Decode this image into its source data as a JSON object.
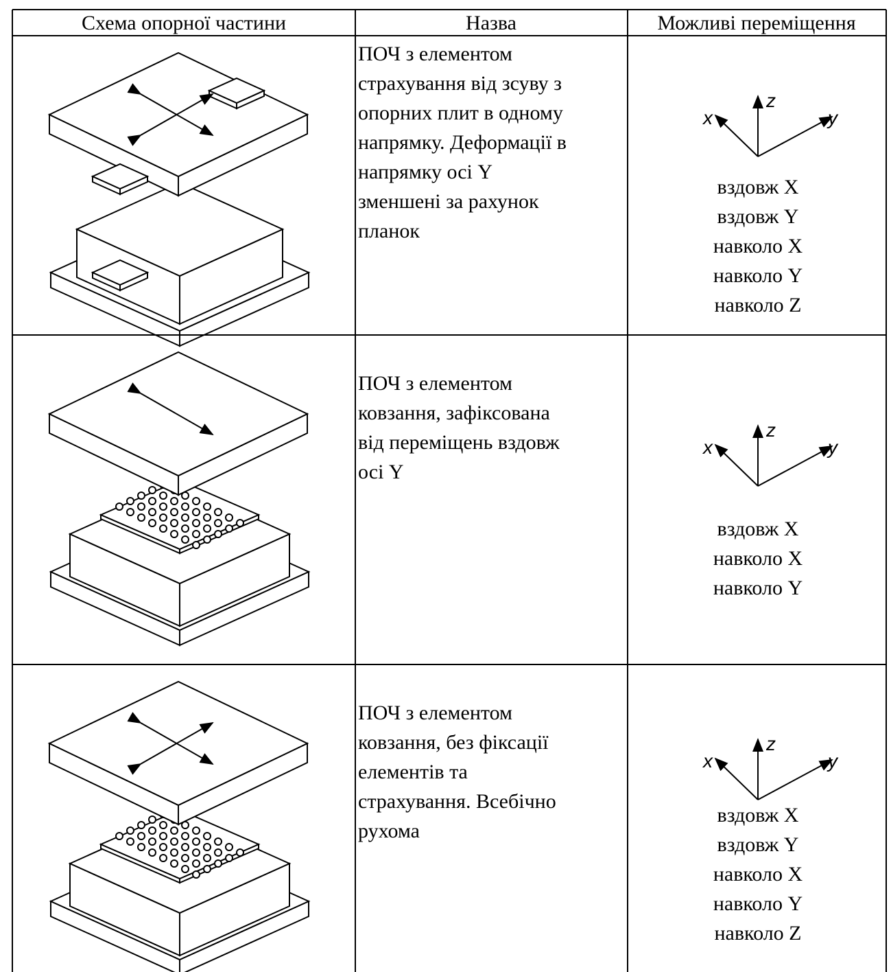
{
  "table": {
    "header": [
      "Схема опорної частини",
      "Назва",
      "Можливі переміщення"
    ],
    "rows": [
      {
        "name": [
          "ПОЧ з елементом",
          "страхування від зсуву з",
          "опорних плит в одному",
          "напрямку. Деформації в",
          "напрямку осі Y",
          "зменшені за рахунок",
          "планок"
        ],
        "axes": {
          "z": "z",
          "x": "x",
          "y": "y"
        },
        "movements": [
          "вздовж X",
          "вздовж Y",
          "навколо X",
          "навколо Y",
          "навколо Z"
        ]
      },
      {
        "name": [
          "ПОЧ з елементом",
          "ковзання, зафіксована",
          "від переміщень вздовж",
          "осі Y"
        ],
        "axes": {
          "z": "z",
          "x": "x",
          "y": "y"
        },
        "movements": [
          "вздовж X",
          "навколо X",
          "навколо Y"
        ]
      },
      {
        "name": [
          "ПОЧ з елементом",
          "ковзання, без фіксації",
          "елементів та",
          "страхування. Всебічно",
          "рухома"
        ],
        "axes": {
          "z": "z",
          "x": "x",
          "y": "y"
        },
        "movements": [
          "вздовж X",
          "вздовж Y",
          "навколо X",
          "навколо Y",
          "навколо Z"
        ]
      }
    ]
  }
}
